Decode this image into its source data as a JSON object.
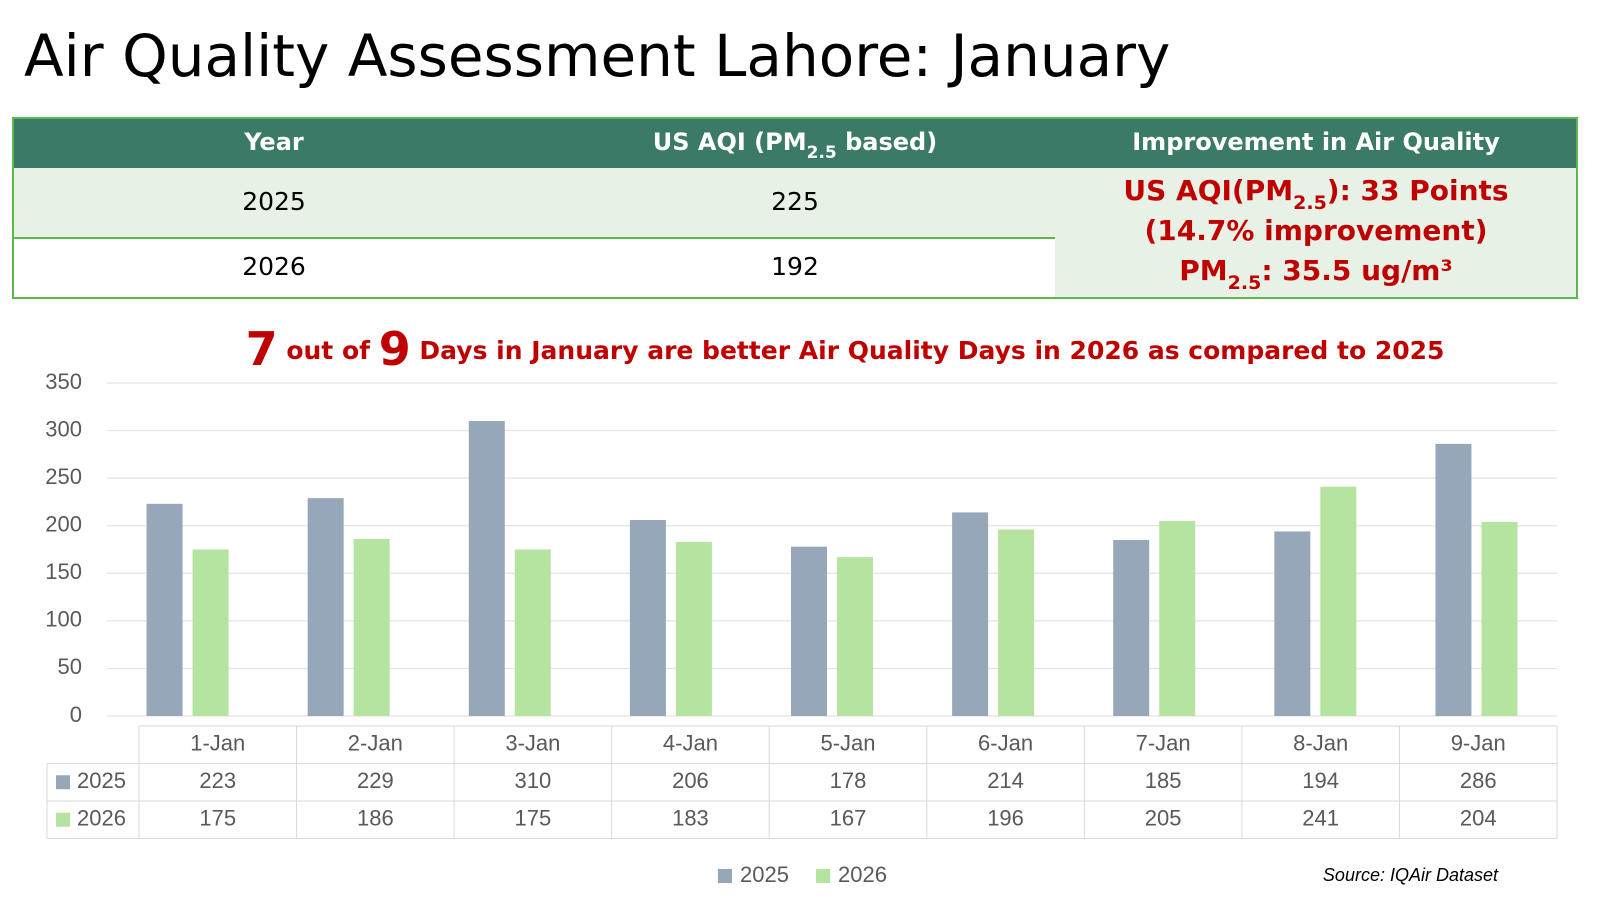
{
  "title": "Air Quality Assessment Lahore: January",
  "table": {
    "headers": [
      [
        "Year"
      ],
      [
        "US AQI (PM",
        "2.5",
        " based)"
      ],
      [
        "Improvement in Air Quality"
      ]
    ],
    "rows": [
      [
        "2025",
        "225"
      ],
      [
        "2026",
        "192"
      ]
    ],
    "improvement": [
      [
        "US AQI(PM",
        "2.5",
        "): 33 Points"
      ],
      [
        "(14.7% improvement)"
      ],
      [
        "PM",
        "2.5",
        ": 35.5 ug/m³"
      ]
    ]
  },
  "chart_data": {
    "type": "bar",
    "subtitle": [
      "7",
      " out of ",
      "9",
      " Days in January are better Air Quality Days in 2026 as compared to 2025"
    ],
    "categories": [
      "1-Jan",
      "2-Jan",
      "3-Jan",
      "4-Jan",
      "5-Jan",
      "6-Jan",
      "7-Jan",
      "8-Jan",
      "9-Jan"
    ],
    "series": [
      {
        "name": "2025",
        "color": "#95a7b8",
        "values": [
          223,
          229,
          310,
          206,
          178,
          214,
          185,
          194,
          286
        ]
      },
      {
        "name": "2026",
        "color": "#b5e3a0",
        "values": [
          175,
          186,
          175,
          183,
          167,
          196,
          205,
          241,
          204
        ]
      }
    ],
    "ylim": [
      0,
      350
    ],
    "yticks": [
      0,
      50,
      100,
      150,
      200,
      250,
      300,
      350
    ],
    "grid": true,
    "legend": "bottom",
    "source": "Source: IQAir Dataset"
  }
}
